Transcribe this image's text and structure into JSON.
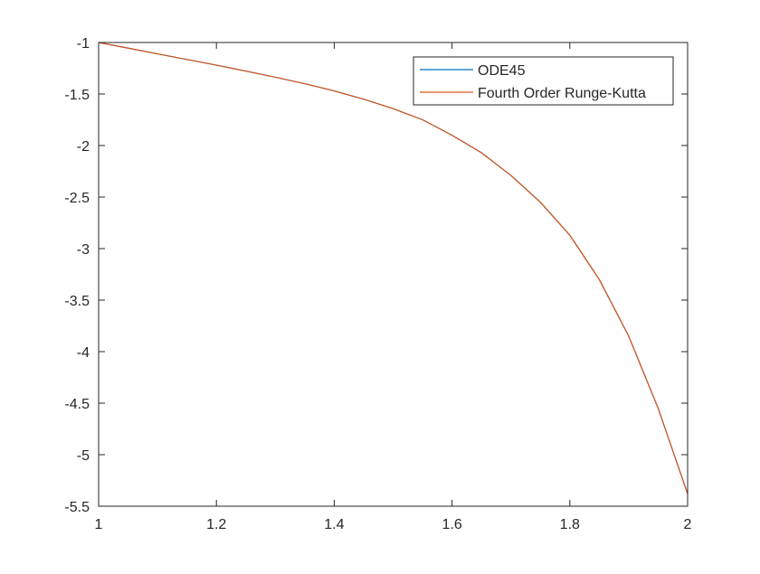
{
  "chart_data": {
    "type": "line",
    "title": "",
    "xlabel": "",
    "ylabel": "",
    "xlim": [
      1,
      2
    ],
    "ylim": [
      -5.5,
      -1
    ],
    "grid": false,
    "legend_position": "top-right",
    "x_ticks": [
      1,
      1.2,
      1.4,
      1.6,
      1.8,
      2
    ],
    "x_tick_labels": [
      "1",
      "1.2",
      "1.4",
      "1.6",
      "1.8",
      "2"
    ],
    "y_ticks": [
      -1,
      -1.5,
      -2,
      -2.5,
      -3,
      -3.5,
      -4,
      -4.5,
      -5,
      -5.5
    ],
    "y_tick_labels": [
      "-1",
      "-1.5",
      "-2",
      "-2.5",
      "-3",
      "-3.5",
      "-4",
      "-4.5",
      "-5",
      "-5.5"
    ],
    "series": [
      {
        "name": "ODE45",
        "color": "#0072BD",
        "x": [
          1.0,
          1.05,
          1.1,
          1.15,
          1.2,
          1.25,
          1.3,
          1.35,
          1.4,
          1.45,
          1.5,
          1.55,
          1.6,
          1.65,
          1.7,
          1.75,
          1.8,
          1.85,
          1.9,
          1.95,
          2.0
        ],
        "y": [
          -1.0,
          -1.055,
          -1.11,
          -1.165,
          -1.22,
          -1.278,
          -1.337,
          -1.4,
          -1.47,
          -1.55,
          -1.642,
          -1.75,
          -1.9,
          -2.07,
          -2.29,
          -2.55,
          -2.87,
          -3.3,
          -3.85,
          -4.55,
          -5.38
        ]
      },
      {
        "name": "Fourth Order Runge-Kutta",
        "color": "#D95319",
        "x": [
          1.0,
          1.05,
          1.1,
          1.15,
          1.2,
          1.25,
          1.3,
          1.35,
          1.4,
          1.45,
          1.5,
          1.55,
          1.6,
          1.65,
          1.7,
          1.75,
          1.8,
          1.85,
          1.9,
          1.95,
          2.0
        ],
        "y": [
          -1.0,
          -1.055,
          -1.11,
          -1.165,
          -1.22,
          -1.278,
          -1.337,
          -1.4,
          -1.47,
          -1.55,
          -1.642,
          -1.75,
          -1.9,
          -2.07,
          -2.29,
          -2.55,
          -2.87,
          -3.3,
          -3.85,
          -4.55,
          -5.38
        ]
      }
    ]
  }
}
